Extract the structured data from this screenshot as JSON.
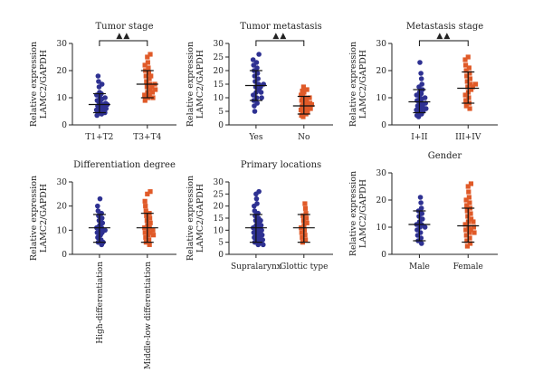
{
  "chart_data": [
    {
      "type": "scatter",
      "title": "Tumor stage",
      "ylabel": [
        "Relative expression",
        "LAMC2/GAPDH"
      ],
      "ylim": [
        0,
        30
      ],
      "yticks": [
        0,
        10,
        20,
        30
      ],
      "categories": [
        "T1+T2",
        "T3+T4"
      ],
      "rotate_labels": false,
      "significance": "▲▲",
      "colors": [
        "#2e3192",
        "#e05a28"
      ],
      "markers": [
        "circle",
        "square"
      ],
      "groups": [
        {
          "mean": 7.5,
          "sd_low": 4.5,
          "sd_high": 11.5,
          "values": [
            18,
            16,
            15,
            14,
            12,
            11.5,
            11,
            10,
            10,
            9.5,
            9,
            8.5,
            8,
            8,
            7.5,
            7.5,
            7,
            7,
            6.5,
            6.5,
            6,
            6,
            5.5,
            5.5,
            5,
            5,
            4.5,
            4.5,
            4,
            3.5
          ]
        },
        {
          "mean": 15,
          "sd_low": 10,
          "sd_high": 20,
          "values": [
            26,
            25,
            23,
            22,
            21,
            20,
            19,
            18,
            18,
            17,
            16,
            15,
            15,
            14,
            14,
            13,
            13,
            12,
            12,
            11,
            11,
            10,
            10,
            9
          ]
        }
      ]
    },
    {
      "type": "scatter",
      "title": "Tumor metastasis",
      "ylabel": [
        "Relative expression",
        "LAMC2/GAPDH"
      ],
      "ylim": [
        0,
        30
      ],
      "yticks": [
        0,
        5,
        10,
        15,
        20,
        25,
        30
      ],
      "categories": [
        "Yes",
        "No"
      ],
      "rotate_labels": false,
      "significance": "▲▲",
      "colors": [
        "#2e3192",
        "#e05a28"
      ],
      "markers": [
        "circle",
        "square"
      ],
      "groups": [
        {
          "mean": 14.5,
          "sd_low": 9,
          "sd_high": 20,
          "values": [
            26,
            24,
            23,
            22,
            21,
            20,
            19,
            18,
            17,
            16,
            15,
            15,
            14,
            14,
            13,
            12,
            12,
            11,
            10,
            10,
            9,
            8,
            7,
            5
          ]
        },
        {
          "mean": 7,
          "sd_low": 4,
          "sd_high": 10.5,
          "values": [
            14,
            13,
            12.5,
            12,
            11,
            10.5,
            10,
            10,
            9.5,
            9,
            9,
            8.5,
            8,
            8,
            7.5,
            7.5,
            7,
            7,
            6.5,
            6.5,
            6,
            6,
            5.5,
            5.5,
            5,
            5,
            4.5,
            4,
            3.5,
            3
          ]
        }
      ]
    },
    {
      "type": "scatter",
      "title": "Metastasis stage",
      "ylabel": [
        "Relative expression",
        "LAMC2/GAPDH"
      ],
      "ylim": [
        0,
        30
      ],
      "yticks": [
        0,
        10,
        20,
        30
      ],
      "categories": [
        "I+II",
        "III+IV"
      ],
      "rotate_labels": false,
      "significance": "▲▲",
      "colors": [
        "#2e3192",
        "#e05a28"
      ],
      "markers": [
        "circle",
        "square"
      ],
      "groups": [
        {
          "mean": 8.5,
          "sd_low": 4.5,
          "sd_high": 13,
          "values": [
            23,
            19,
            17,
            15,
            14,
            13,
            12,
            11.5,
            11,
            10,
            10,
            9.5,
            9,
            8.5,
            8,
            8,
            7.5,
            7,
            7,
            6.5,
            6,
            6,
            5.5,
            5,
            5,
            4.5,
            4,
            3.5,
            3
          ]
        },
        {
          "mean": 13.5,
          "sd_low": 8,
          "sd_high": 19.5,
          "values": [
            25,
            24,
            22,
            21,
            20,
            19,
            18,
            17,
            16,
            15,
            15,
            14,
            14,
            13,
            12,
            11,
            10,
            9,
            8,
            7,
            6
          ]
        }
      ]
    },
    {
      "type": "scatter",
      "title": "Differentiation degree",
      "ylabel": [
        "Relative expression",
        "LAMC2/GAPDH"
      ],
      "ylim": [
        0,
        30
      ],
      "yticks": [
        0,
        10,
        20,
        30
      ],
      "categories": [
        "High-differentiation",
        "Middle-low differentiation"
      ],
      "rotate_labels": true,
      "significance": "",
      "colors": [
        "#2e3192",
        "#e05a28"
      ],
      "markers": [
        "circle",
        "square"
      ],
      "groups": [
        {
          "mean": 11,
          "sd_low": 5,
          "sd_high": 16.5,
          "values": [
            23,
            20,
            18,
            17,
            16,
            15,
            14,
            13,
            12,
            11,
            11,
            10,
            10,
            9,
            9,
            8,
            7,
            6,
            5,
            5,
            4
          ]
        },
        {
          "mean": 11,
          "sd_low": 5,
          "sd_high": 17,
          "values": [
            26,
            25,
            22,
            20,
            18,
            17,
            16,
            15,
            14,
            13,
            12,
            11,
            11,
            10,
            10,
            9,
            9,
            8,
            8,
            7,
            6,
            5,
            4
          ]
        }
      ]
    },
    {
      "type": "scatter",
      "title": "Primary locations",
      "ylabel": [
        "Relative expression",
        "LAMC2/GAPDH"
      ],
      "ylim": [
        0,
        30
      ],
      "yticks": [
        0,
        5,
        10,
        15,
        20,
        25,
        30
      ],
      "categories": [
        "Supralarynx",
        "Glottic type"
      ],
      "rotate_labels": false,
      "significance": "",
      "colors": [
        "#2e3192",
        "#e05a28"
      ],
      "markers": [
        "circle",
        "square"
      ],
      "groups": [
        {
          "mean": 11,
          "sd_low": 5,
          "sd_high": 16.5,
          "values": [
            26,
            25,
            23,
            21,
            20,
            18,
            17,
            16,
            15,
            14,
            14,
            13,
            12,
            12,
            11,
            11,
            10,
            10,
            9,
            9,
            8,
            8,
            7,
            7,
            6,
            6,
            5,
            5,
            4,
            4
          ]
        },
        {
          "mean": 11,
          "sd_low": 5,
          "sd_high": 16.5,
          "values": [
            21,
            19,
            17,
            16,
            15,
            14,
            13,
            12,
            11,
            10,
            9,
            8,
            7,
            6,
            5
          ]
        }
      ]
    },
    {
      "type": "scatter",
      "title": "Gender",
      "ylabel": [
        "Relative expression",
        "LAMC2/GAPDH"
      ],
      "ylim": [
        0,
        30
      ],
      "yticks": [
        0,
        10,
        20,
        30
      ],
      "categories": [
        "Male",
        "Female"
      ],
      "rotate_labels": false,
      "significance": "",
      "colors": [
        "#2e3192",
        "#e05a28"
      ],
      "markers": [
        "circle",
        "square"
      ],
      "groups": [
        {
          "mean": 11,
          "sd_low": 5,
          "sd_high": 16,
          "values": [
            21,
            19,
            17,
            16,
            15,
            14,
            13,
            12,
            11,
            11,
            10,
            10,
            9,
            8,
            7,
            6,
            5,
            4
          ]
        },
        {
          "mean": 10.5,
          "sd_low": 4.5,
          "sd_high": 17,
          "values": [
            26,
            25,
            23,
            21,
            20,
            19,
            18,
            17,
            16,
            15,
            14,
            13,
            12,
            12,
            11,
            10,
            10,
            9,
            9,
            8,
            8,
            7,
            6,
            5,
            4,
            3
          ]
        }
      ]
    }
  ]
}
